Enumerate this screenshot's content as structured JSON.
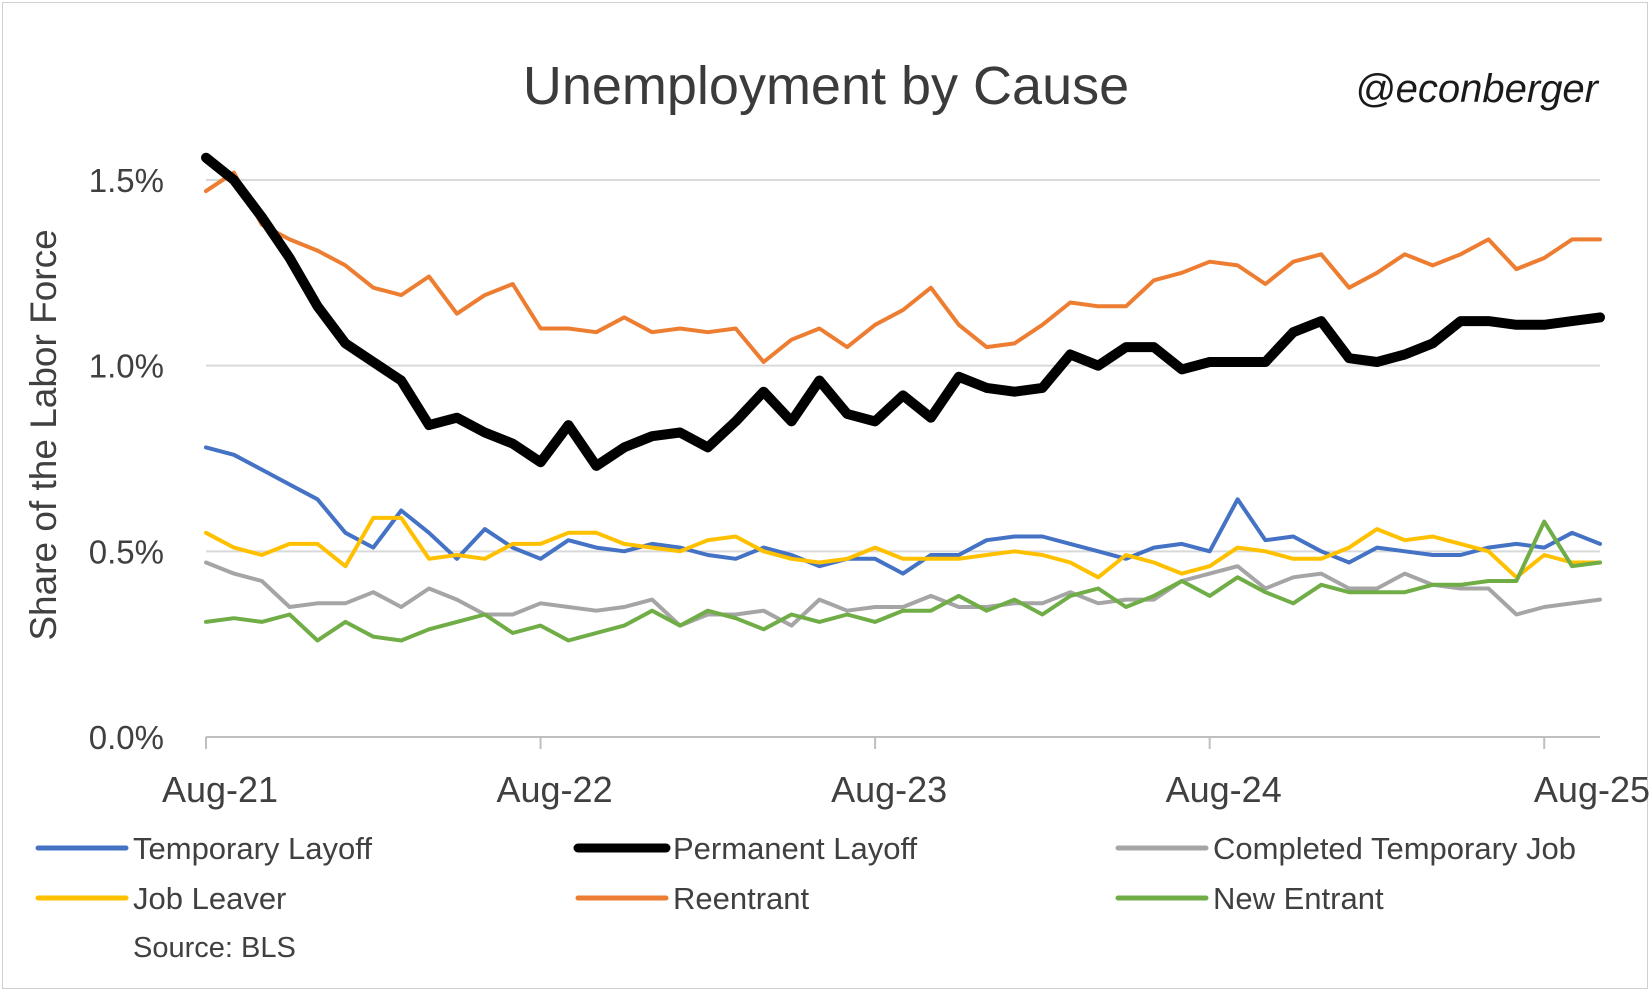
{
  "chart_data": {
    "type": "line",
    "title": "Unemployment by Cause",
    "handle": "@econberger",
    "ylabel": "Share of the Labor Force",
    "xlabel": "",
    "source": "Source: BLS",
    "ylim": [
      0,
      1.5
    ],
    "y_ticks": [
      "0.0%",
      "0.5%",
      "1.0%",
      "1.5%"
    ],
    "x_ticks": [
      "Aug-21",
      "Aug-22",
      "Aug-23",
      "Aug-24",
      "Aug-25"
    ],
    "x_tick_index": [
      0,
      12,
      24,
      36,
      48
    ],
    "grid": "horizontal",
    "legend_position": "bottom",
    "series": [
      {
        "name": "Temporary Layoff",
        "color": "#4472C4",
        "width": 4,
        "values": [
          0.78,
          0.76,
          0.72,
          0.68,
          0.64,
          0.55,
          0.51,
          0.61,
          0.55,
          0.48,
          0.56,
          0.51,
          0.48,
          0.53,
          0.51,
          0.5,
          0.52,
          0.51,
          0.49,
          0.48,
          0.51,
          0.49,
          0.46,
          0.48,
          0.48,
          0.44,
          0.49,
          0.49,
          0.53,
          0.54,
          0.54,
          0.52,
          0.5,
          0.48,
          0.51,
          0.52,
          0.5,
          0.64,
          0.53,
          0.54,
          0.5,
          0.47,
          0.51,
          0.5,
          0.49,
          0.49,
          0.51,
          0.52,
          0.51,
          0.55,
          0.52
        ]
      },
      {
        "name": "Permanent Layoff",
        "color": "#000000",
        "width": 10,
        "values": [
          1.56,
          1.5,
          1.4,
          1.29,
          1.16,
          1.06,
          1.01,
          0.96,
          0.84,
          0.86,
          0.82,
          0.79,
          0.74,
          0.84,
          0.73,
          0.78,
          0.81,
          0.82,
          0.78,
          0.85,
          0.93,
          0.85,
          0.96,
          0.87,
          0.85,
          0.92,
          0.86,
          0.97,
          0.94,
          0.93,
          0.94,
          1.03,
          1.0,
          1.05,
          1.05,
          0.99,
          1.01,
          1.01,
          1.01,
          1.09,
          1.12,
          1.02,
          1.01,
          1.03,
          1.06,
          1.12,
          1.12,
          1.11,
          1.11,
          1.12,
          1.13
        ]
      },
      {
        "name": "Completed Temporary Job",
        "color": "#A5A5A5",
        "width": 4,
        "values": [
          0.47,
          0.44,
          0.42,
          0.35,
          0.36,
          0.36,
          0.39,
          0.35,
          0.4,
          0.37,
          0.33,
          0.33,
          0.36,
          0.35,
          0.34,
          0.35,
          0.37,
          0.3,
          0.33,
          0.33,
          0.34,
          0.3,
          0.37,
          0.34,
          0.35,
          0.35,
          0.38,
          0.35,
          0.35,
          0.36,
          0.36,
          0.39,
          0.36,
          0.37,
          0.37,
          0.42,
          0.44,
          0.46,
          0.4,
          0.43,
          0.44,
          0.4,
          0.4,
          0.44,
          0.41,
          0.4,
          0.4,
          0.33,
          0.35,
          0.36,
          0.37
        ]
      },
      {
        "name": "Job Leaver",
        "color": "#FFC000",
        "width": 4,
        "values": [
          0.55,
          0.51,
          0.49,
          0.52,
          0.52,
          0.46,
          0.59,
          0.59,
          0.48,
          0.49,
          0.48,
          0.52,
          0.52,
          0.55,
          0.55,
          0.52,
          0.51,
          0.5,
          0.53,
          0.54,
          0.5,
          0.48,
          0.47,
          0.48,
          0.51,
          0.48,
          0.48,
          0.48,
          0.49,
          0.5,
          0.49,
          0.47,
          0.43,
          0.49,
          0.47,
          0.44,
          0.46,
          0.51,
          0.5,
          0.48,
          0.48,
          0.51,
          0.56,
          0.53,
          0.54,
          0.52,
          0.5,
          0.43,
          0.49,
          0.47,
          0.47
        ]
      },
      {
        "name": "Reentrant",
        "color": "#ED7D31",
        "width": 4,
        "values": [
          1.47,
          1.52,
          1.38,
          1.34,
          1.31,
          1.27,
          1.21,
          1.19,
          1.24,
          1.14,
          1.19,
          1.22,
          1.1,
          1.1,
          1.09,
          1.13,
          1.09,
          1.1,
          1.09,
          1.1,
          1.01,
          1.07,
          1.1,
          1.05,
          1.11,
          1.15,
          1.21,
          1.11,
          1.05,
          1.06,
          1.11,
          1.17,
          1.16,
          1.16,
          1.23,
          1.25,
          1.28,
          1.27,
          1.22,
          1.28,
          1.3,
          1.21,
          1.25,
          1.3,
          1.27,
          1.3,
          1.34,
          1.26,
          1.29,
          1.34,
          1.34
        ]
      },
      {
        "name": "New Entrant",
        "color": "#70AD47",
        "width": 4,
        "values": [
          0.31,
          0.32,
          0.31,
          0.33,
          0.26,
          0.31,
          0.27,
          0.26,
          0.29,
          0.31,
          0.33,
          0.28,
          0.3,
          0.26,
          0.28,
          0.3,
          0.34,
          0.3,
          0.34,
          0.32,
          0.29,
          0.33,
          0.31,
          0.33,
          0.31,
          0.34,
          0.34,
          0.38,
          0.34,
          0.37,
          0.33,
          0.38,
          0.4,
          0.35,
          0.38,
          0.42,
          0.38,
          0.43,
          0.39,
          0.36,
          0.41,
          0.39,
          0.39,
          0.39,
          0.41,
          0.41,
          0.42,
          0.42,
          0.58,
          0.46,
          0.47
        ]
      }
    ]
  }
}
